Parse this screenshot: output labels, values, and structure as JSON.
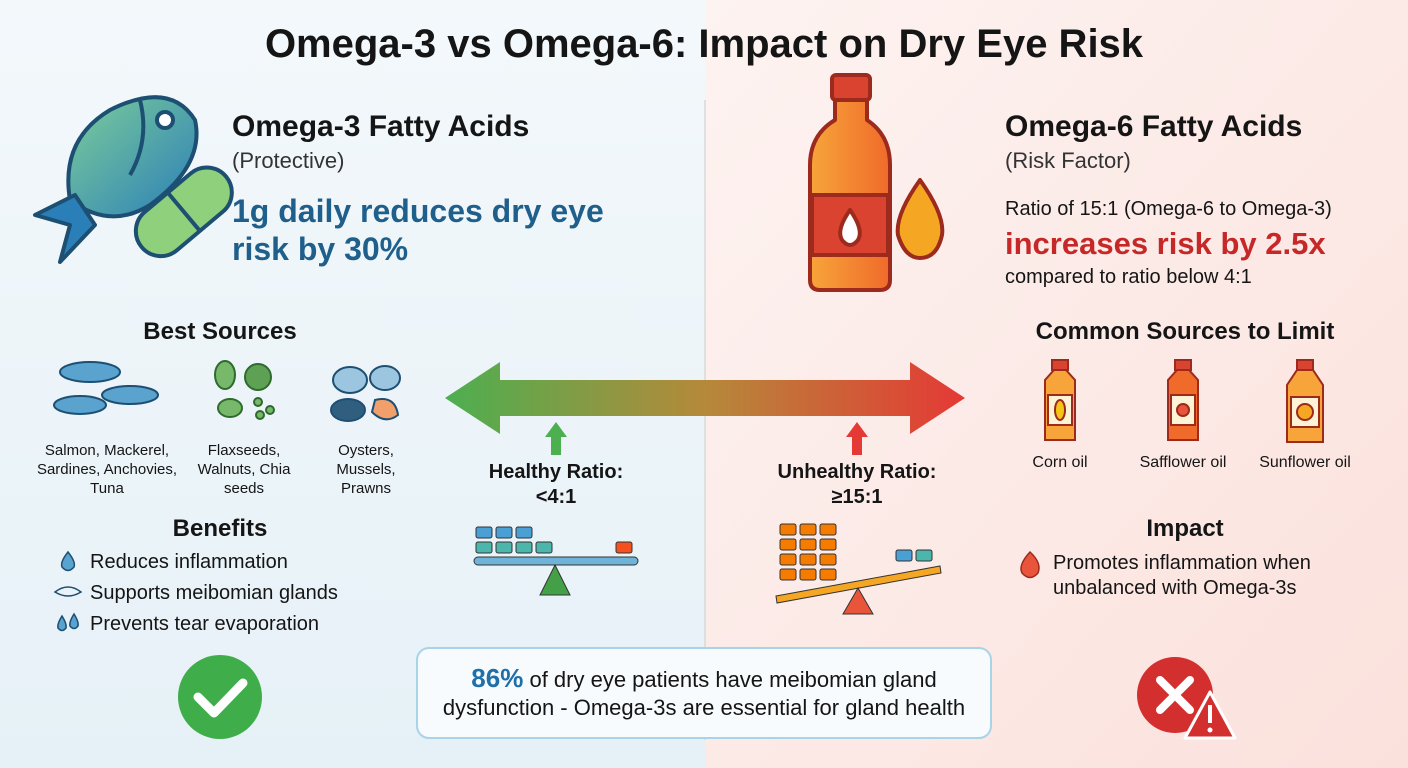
{
  "title": "Omega-3 vs Omega-6: Impact on Dry Eye Risk",
  "left": {
    "heading": "Omega-3 Fatty Acids",
    "subheading": "(Protective)",
    "highlight": "1g daily reduces dry eye risk by 30%",
    "sources_title": "Best Sources",
    "sources": [
      "Salmon, Mackerel, Sardines, Anchovies, Tuna",
      "Flaxseeds, Walnuts, Chia seeds",
      "Oysters, Mussels, Prawns"
    ],
    "benefits_title": "Benefits",
    "benefits": [
      "Reduces inflammation",
      "Supports meibomian glands",
      "Prevents tear evaporation"
    ]
  },
  "right": {
    "heading": "Omega-6 Fatty Acids",
    "subheading": "(Risk Factor)",
    "ratio_text": "Ratio of 15:1 (Omega-6 to Omega-3)",
    "highlight": "increases risk by 2.5x",
    "comparison": "compared to ratio below 4:1",
    "sources_title": "Common Sources to Limit",
    "sources": [
      "Corn oil",
      "Safflower oil",
      "Sunflower oil"
    ],
    "impact_title": "Impact",
    "impact": "Promotes inflammation when unbalanced with Omega-3s"
  },
  "center": {
    "healthy_label": "Healthy Ratio:",
    "healthy_value": "<4:1",
    "unhealthy_label": "Unhealthy Ratio:",
    "unhealthy_value": "≥15:1"
  },
  "footer": {
    "stat": "86%",
    "text": "of dry eye patients have meibomian gland dysfunction - Omega-3s are essential for gland health"
  }
}
